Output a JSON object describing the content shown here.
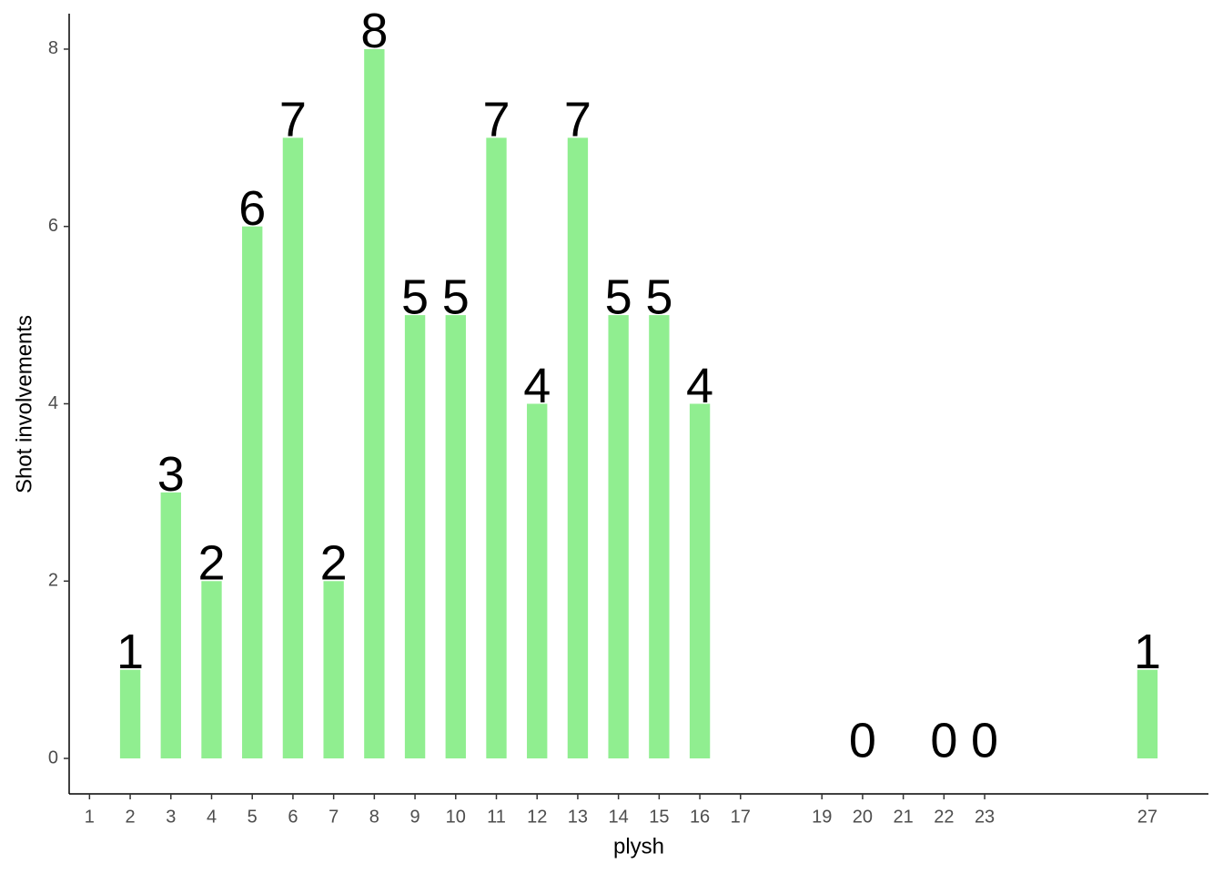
{
  "chart_data": {
    "type": "bar",
    "x": [
      2,
      3,
      4,
      5,
      6,
      7,
      8,
      9,
      10,
      11,
      12,
      13,
      14,
      15,
      16,
      20,
      22,
      23,
      27
    ],
    "values": [
      1,
      3,
      2,
      6,
      7,
      2,
      8,
      5,
      5,
      7,
      4,
      7,
      5,
      5,
      4,
      0,
      0,
      0,
      1
    ],
    "color": "#90ee90",
    "xlabel": "plysh",
    "ylabel": "Shot involvements",
    "xlim": [
      0.5,
      28.5
    ],
    "xticks": [
      1,
      2,
      3,
      4,
      5,
      6,
      7,
      8,
      9,
      10,
      11,
      12,
      13,
      14,
      15,
      16,
      17,
      19,
      20,
      21,
      22,
      23,
      27
    ],
    "ylim": [
      -0.4,
      8.4
    ],
    "yticks": [
      0,
      2,
      4,
      6,
      8
    ]
  }
}
